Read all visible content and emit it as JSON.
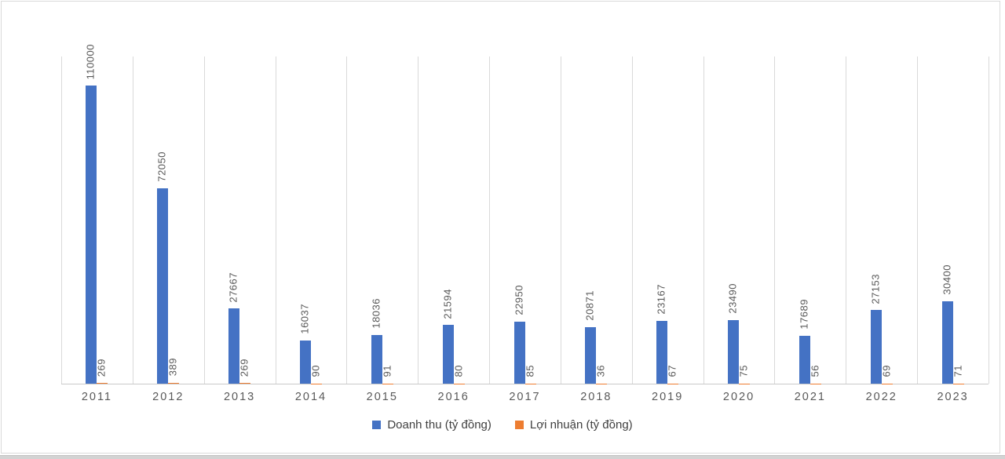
{
  "chart_data": {
    "type": "bar",
    "categories": [
      "2011",
      "2012",
      "2013",
      "2014",
      "2015",
      "2016",
      "2017",
      "2018",
      "2019",
      "2020",
      "2021",
      "2022",
      "2023"
    ],
    "series": [
      {
        "name": "Doanh thu (tỷ đồng)",
        "color": "#4472C4",
        "values": [
          110000,
          72050,
          27667,
          16037,
          18036,
          21594,
          22950,
          20871,
          23167,
          23490,
          17689,
          27153,
          30400
        ]
      },
      {
        "name": "Lợi nhuận (tỷ đồng)",
        "color": "#ED7D31",
        "values": [
          269,
          389,
          269,
          90,
          91,
          80,
          85,
          36,
          67,
          75,
          56,
          69,
          71
        ]
      }
    ],
    "title": "",
    "xlabel": "",
    "ylabel": "",
    "ylim": [
      0,
      121000
    ],
    "yaxis_visible": false,
    "grid": "vertical-category-boundaries",
    "gridline_color": "#D9D9D9",
    "axis_line_color": "#C9C9C9",
    "label_color": "#595959",
    "data_labels": "rotated-90-above-bars",
    "legend_position": "bottom"
  }
}
